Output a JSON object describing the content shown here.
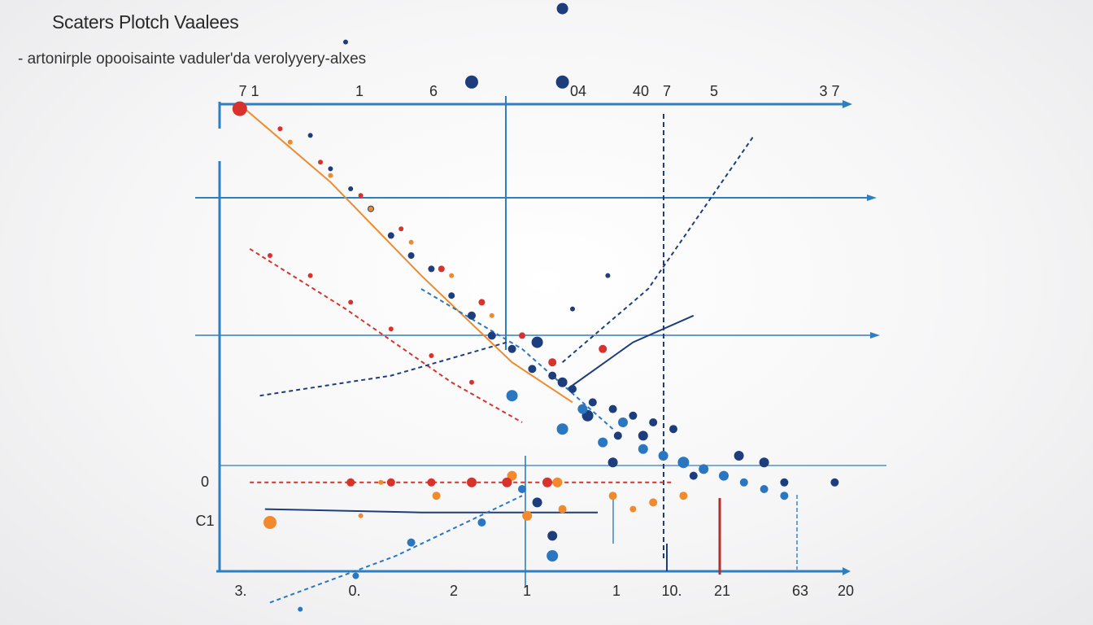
{
  "title": "Scaters Plotch Vaalees",
  "subtitle": "- artonirple opooisainte vaduler'da verolyyery-alxes",
  "colors": {
    "axis": "#2f7ec0",
    "navy": "#1d3d7c",
    "blue": "#2a76c0",
    "orange": "#f08a2c",
    "red": "#d8322c",
    "redline": "#b03030"
  },
  "chart_data": {
    "type": "scatter",
    "top_tick_labels": [
      "7 1",
      "1",
      "6",
      "04",
      "40",
      "7",
      "5",
      "3 7"
    ],
    "bottom_tick_labels": [
      "3.",
      "0.",
      "2",
      "1",
      "1",
      "10.",
      "21",
      "63",
      "20"
    ],
    "left_tick_labels": [
      "0",
      "C1"
    ],
    "grid": true,
    "series": [
      {
        "color": "navy",
        "points": [
          [
            1,
            9.6,
            3
          ],
          [
            2.8,
            9.6,
            6
          ],
          [
            5.1,
            9.6,
            6
          ],
          [
            6.8,
            9.5,
            6
          ],
          [
            8.6,
            9.2,
            3
          ],
          [
            6.8,
            7.7,
            7
          ],
          [
            5,
            6.6,
            8
          ],
          [
            6.8,
            6.6,
            8
          ],
          [
            2.5,
            7.2,
            3
          ],
          [
            1.8,
            5.8,
            3
          ],
          [
            2.2,
            5.3,
            3
          ],
          [
            2.6,
            5.0,
            3
          ],
          [
            3.0,
            4.7,
            4
          ],
          [
            3.4,
            4.3,
            4
          ],
          [
            3.8,
            4.0,
            4
          ],
          [
            4.2,
            3.8,
            4
          ],
          [
            4.6,
            3.4,
            4
          ],
          [
            5.0,
            3.1,
            5
          ],
          [
            5.4,
            2.8,
            5
          ],
          [
            5.8,
            2.6,
            5
          ],
          [
            6.2,
            2.3,
            5
          ],
          [
            6.6,
            2.2,
            5
          ],
          [
            7.0,
            2.0,
            5
          ],
          [
            7.4,
            1.8,
            5
          ],
          [
            7.8,
            1.7,
            5
          ],
          [
            8.2,
            1.6,
            5
          ],
          [
            8.6,
            1.5,
            5
          ],
          [
            9.0,
            1.4,
            5
          ],
          [
            6.3,
            2.7,
            7
          ],
          [
            6.8,
            2.1,
            6
          ],
          [
            7.3,
            1.6,
            7
          ],
          [
            7.9,
            1.3,
            5
          ],
          [
            8.4,
            1.3,
            6
          ],
          [
            6.3,
            0.3,
            6
          ],
          [
            7.8,
            0.9,
            6
          ],
          [
            9.4,
            0.7,
            5
          ],
          [
            10.3,
            1.0,
            6
          ],
          [
            10.8,
            0.9,
            6
          ],
          [
            6.6,
            -0.2,
            6
          ],
          [
            11.2,
            0.6,
            5
          ],
          [
            12.2,
            0.6,
            5
          ],
          [
            7,
            3.2,
            3
          ],
          [
            7.7,
            3.7,
            3
          ]
        ]
      },
      {
        "color": "blue",
        "points": [
          [
            5.8,
            1.9,
            7
          ],
          [
            6.8,
            1.4,
            7
          ],
          [
            7.2,
            1.7,
            6
          ],
          [
            7.6,
            1.2,
            6
          ],
          [
            8.0,
            1.5,
            6
          ],
          [
            8.4,
            1.1,
            6
          ],
          [
            8.8,
            1.0,
            6
          ],
          [
            9.2,
            0.9,
            7
          ],
          [
            9.6,
            0.8,
            6
          ],
          [
            10.0,
            0.7,
            6
          ],
          [
            10.4,
            0.6,
            5
          ],
          [
            10.8,
            0.5,
            5
          ],
          [
            11.2,
            0.4,
            5
          ],
          [
            6.0,
            0.5,
            5
          ],
          [
            5.2,
            0.0,
            5
          ],
          [
            6.6,
            -0.5,
            7
          ],
          [
            3.8,
            -0.3,
            5
          ],
          [
            2.7,
            -0.8,
            4
          ],
          [
            1.6,
            -1.3,
            3
          ]
        ]
      },
      {
        "color": "orange",
        "points": [
          [
            1.4,
            5.7,
            3
          ],
          [
            2.2,
            5.2,
            3
          ],
          [
            3.0,
            4.7,
            3
          ],
          [
            3.8,
            4.2,
            3
          ],
          [
            4.6,
            3.7,
            3
          ],
          [
            5.4,
            3.1,
            3
          ],
          [
            1.0,
            0.0,
            8
          ],
          [
            3.2,
            0.6,
            3
          ],
          [
            4.3,
            0.4,
            5
          ],
          [
            5.8,
            0.7,
            6
          ],
          [
            6.7,
            0.6,
            6
          ],
          [
            7.8,
            0.4,
            5
          ],
          [
            8.6,
            0.3,
            5
          ],
          [
            9.2,
            0.4,
            5
          ],
          [
            2.8,
            0.1,
            3
          ],
          [
            6.1,
            0.1,
            6
          ],
          [
            6.8,
            0.2,
            5
          ],
          [
            8.2,
            0.2,
            4
          ]
        ]
      },
      {
        "color": "red",
        "points": [
          [
            0.4,
            6.2,
            9
          ],
          [
            1.2,
            5.9,
            3
          ],
          [
            2.0,
            5.4,
            3
          ],
          [
            2.8,
            4.9,
            3
          ],
          [
            3.6,
            4.4,
            3
          ],
          [
            4.4,
            3.8,
            4
          ],
          [
            5.2,
            3.3,
            4
          ],
          [
            6.0,
            2.8,
            4
          ],
          [
            6.6,
            2.4,
            5
          ],
          [
            2.6,
            0.6,
            5
          ],
          [
            3.4,
            0.6,
            5
          ],
          [
            4.2,
            0.6,
            5
          ],
          [
            5.0,
            0.6,
            6
          ],
          [
            5.7,
            0.6,
            6
          ],
          [
            6.5,
            0.6,
            6
          ],
          [
            7.6,
            2.6,
            5
          ],
          [
            1.0,
            4.0,
            3
          ],
          [
            1.8,
            3.7,
            3
          ],
          [
            2.6,
            3.3,
            3
          ],
          [
            3.4,
            2.9,
            3
          ],
          [
            4.2,
            2.5,
            3
          ],
          [
            5.0,
            2.1,
            3
          ]
        ]
      }
    ],
    "lines": [
      {
        "color": "orange",
        "points": [
          [
            0.5,
            6.2
          ],
          [
            2.2,
            5.1
          ],
          [
            4.0,
            3.7
          ],
          [
            5.8,
            2.4
          ],
          [
            7.0,
            1.8
          ]
        ]
      },
      {
        "color": "red",
        "points": [
          [
            0.6,
            4.1
          ],
          [
            2.5,
            3.2
          ],
          [
            4.6,
            2.1
          ],
          [
            6.0,
            1.5
          ]
        ]
      },
      {
        "color": "red",
        "points": [
          [
            0.6,
            0.6
          ],
          [
            4.5,
            0.6
          ],
          [
            9.0,
            0.6
          ]
        ]
      },
      {
        "color": "navy",
        "points": [
          [
            0.9,
            0.2
          ],
          [
            4.0,
            0.15
          ],
          [
            7.5,
            0.15
          ]
        ]
      },
      {
        "color": "blue",
        "points": [
          [
            1.0,
            -1.2
          ],
          [
            3.5,
            -0.5
          ],
          [
            6.0,
            0.4
          ]
        ]
      },
      {
        "color": "navy",
        "points": [
          [
            6.8,
            2.4
          ],
          [
            8.5,
            3.5
          ],
          [
            10.6,
            5.8
          ]
        ]
      },
      {
        "color": "navy",
        "points": [
          [
            6.9,
            2.0
          ],
          [
            8.2,
            2.7
          ],
          [
            9.4,
            3.1
          ]
        ]
      },
      {
        "color": "blue",
        "points": [
          [
            4.0,
            3.5
          ],
          [
            6.0,
            2.6
          ],
          [
            7.8,
            1.4
          ]
        ]
      },
      {
        "color": "navy",
        "points": [
          [
            0.8,
            1.9
          ],
          [
            3.4,
            2.2
          ],
          [
            5.7,
            2.7
          ]
        ]
      }
    ]
  }
}
